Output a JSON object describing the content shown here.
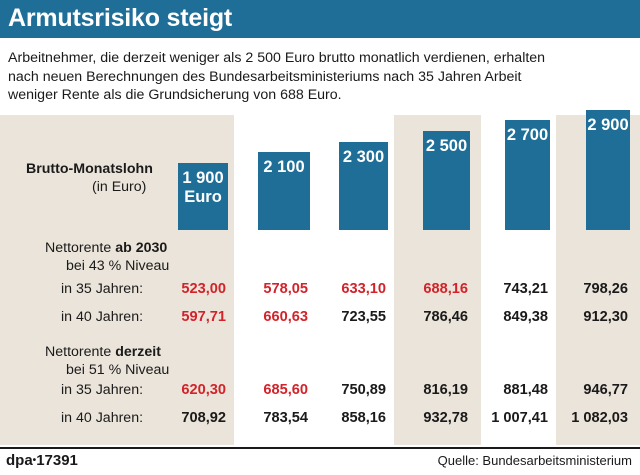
{
  "title": "Armutsrisiko steigt",
  "intro": [
    "Arbeitnehmer, die derzeit weniger als 2 500 Euro brutto monatlich verdienen, erhalten",
    "nach neuen Berechnungen des Bundesarbeitsministeriums nach 35 Jahren Arbeit",
    "weniger Rente als die Grundsicherung von 688 Euro."
  ],
  "labels": {
    "brutto_title": "Brutto-Monatslohn",
    "brutto_unit": "(in Euro)",
    "group1_prefix": "Nettorente ",
    "group1_bold": "ab 2030",
    "group1_level": "bei 43 % Niveau",
    "group2_prefix": "Nettorente ",
    "group2_bold": "derzeit",
    "group2_level": "bei 51 % Niveau",
    "y35": "in 35 Jahren:",
    "y40": "in 40 Jahren:"
  },
  "colors": {
    "accent": "#1e6e98",
    "below_threshold": "#d2232a",
    "panel": "#ebe4da"
  },
  "chart_data": {
    "type": "bar",
    "categories": [
      "1 900",
      "2 100",
      "2 300",
      "2 500",
      "2 700",
      "2 900"
    ],
    "values": [
      1900,
      2100,
      2300,
      2500,
      2700,
      2900
    ],
    "bar_labels": [
      "1 900",
      "2 100",
      "2 300",
      "2 500",
      "2 700",
      "2 900"
    ],
    "bar_sublabels": [
      "Euro",
      "",
      "",
      "",
      "",
      ""
    ],
    "title": "Brutto-Monatslohn",
    "ylabel": "(in Euro)",
    "table": {
      "ab2030_35": [
        "523,00",
        "578,05",
        "633,10",
        "688,16",
        "743,21",
        "798,26"
      ],
      "ab2030_40": [
        "597,71",
        "660,63",
        "723,55",
        "786,46",
        "849,38",
        "912,30"
      ],
      "derzeit_35": [
        "620,30",
        "685,60",
        "750,89",
        "816,19",
        "881,48",
        "946,77"
      ],
      "derzeit_40": [
        "708,92",
        "783,54",
        "858,16",
        "932,78",
        "1 007,41",
        "1 082,03"
      ]
    },
    "below_threshold": {
      "ab2030_35": [
        true,
        true,
        true,
        true,
        false,
        false
      ],
      "ab2030_40": [
        true,
        true,
        false,
        false,
        false,
        false
      ],
      "derzeit_35": [
        true,
        true,
        false,
        false,
        false,
        false
      ],
      "derzeit_40": [
        false,
        false,
        false,
        false,
        false,
        false
      ]
    },
    "threshold": 688
  },
  "footer": {
    "agency": "dpa",
    "bullet": "•",
    "number": "17391",
    "source": "Quelle: Bundesarbeitsministerium"
  }
}
